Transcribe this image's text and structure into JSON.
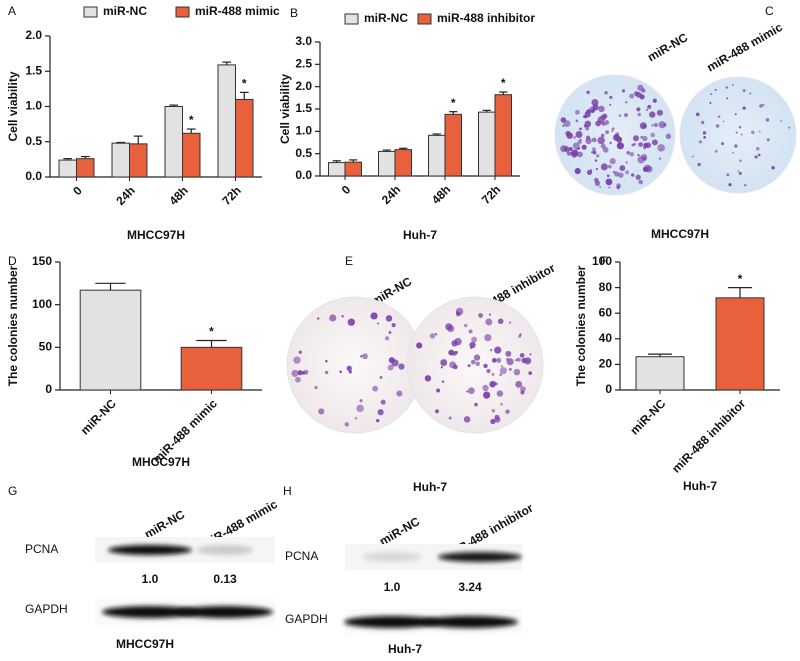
{
  "chart_data": [
    {
      "type": "bar",
      "panel_label": "A",
      "ylabel": "Cell viability",
      "xlabel": "MHCC97H",
      "categories": [
        "0",
        "24h",
        "48h",
        "72h"
      ],
      "series": [
        {
          "name": "miR-NC",
          "color": "#e2e2e2",
          "values": [
            0.24,
            0.48,
            1.0,
            1.59
          ],
          "errors": [
            0.02,
            0.01,
            0.02,
            0.04
          ],
          "significance": [
            null,
            null,
            null,
            null
          ]
        },
        {
          "name": "miR-488 mimic",
          "color": "#e8603c",
          "values": [
            0.26,
            0.47,
            0.62,
            1.1
          ],
          "errors": [
            0.03,
            0.11,
            0.06,
            0.1
          ],
          "significance": [
            null,
            null,
            "*",
            "*"
          ]
        }
      ],
      "ylim": [
        0,
        2.0
      ],
      "yticks": [
        {
          "value": 0,
          "label": "0.0"
        },
        {
          "value": 0.5,
          "label": "0.5"
        },
        {
          "value": 1.0,
          "label": "1.0"
        },
        {
          "value": 1.5,
          "label": "1.5"
        },
        {
          "value": 2.0,
          "label": "2.0"
        }
      ]
    },
    {
      "type": "bar",
      "panel_label": "B",
      "ylabel": "Cell viability",
      "xlabel": "Huh-7",
      "categories": [
        "0",
        "24h",
        "48h",
        "72h"
      ],
      "series": [
        {
          "name": "miR-NC",
          "color": "#e2e2e2",
          "values": [
            0.3,
            0.55,
            0.91,
            1.43
          ],
          "errors": [
            0.04,
            0.03,
            0.03,
            0.04
          ],
          "significance": [
            null,
            null,
            null,
            null
          ]
        },
        {
          "name": "miR-488 inhibitor",
          "color": "#e8603c",
          "values": [
            0.31,
            0.59,
            1.38,
            1.82
          ],
          "errors": [
            0.05,
            0.03,
            0.06,
            0.06
          ],
          "significance": [
            null,
            null,
            "*",
            "*"
          ]
        }
      ],
      "ylim": [
        0,
        3.0
      ],
      "yticks": [
        {
          "value": 0,
          "label": "0.0"
        },
        {
          "value": 0.5,
          "label": "0.5"
        },
        {
          "value": 1.0,
          "label": "1.0"
        },
        {
          "value": 1.5,
          "label": "1.5"
        },
        {
          "value": 2.0,
          "label": "2.0"
        },
        {
          "value": 2.5,
          "label": "2.5"
        },
        {
          "value": 3.0,
          "label": "3.0"
        }
      ]
    },
    {
      "type": "bar",
      "panel_label": "D",
      "ylabel": "The colonies number",
      "xlabel": "MHCC97H",
      "categories": [
        "miR-NC",
        "miR-488 mimic"
      ],
      "values": [
        117,
        50
      ],
      "errors": [
        8,
        8
      ],
      "colors": [
        "#e2e2e2",
        "#e8603c"
      ],
      "significance": [
        null,
        "*"
      ],
      "ylim": [
        0,
        150
      ],
      "yticks": [
        0,
        50,
        100,
        150
      ]
    },
    {
      "type": "bar",
      "panel_label": "F",
      "ylabel": "The colonies number",
      "xlabel": "Huh-7",
      "categories": [
        "miR-NC",
        "miR-488 inhibitor"
      ],
      "values": [
        26,
        72
      ],
      "errors": [
        2,
        8
      ],
      "colors": [
        "#e2e2e2",
        "#e8603c"
      ],
      "significance": [
        null,
        "*"
      ],
      "ylim": [
        0,
        100
      ],
      "yticks": [
        0,
        20,
        40,
        60,
        80,
        100
      ]
    }
  ],
  "colony_images": [
    {
      "panel_label": "C",
      "columns": [
        "miR-NC",
        "miR-488 mimic"
      ],
      "caption": "MHCC97H"
    },
    {
      "panel_label": "E",
      "columns": [
        "miR-NC",
        "miR-488 inhibitor"
      ],
      "caption": "Huh-7"
    }
  ],
  "western_blots": [
    {
      "panel_label": "G",
      "columns": [
        "miR-NC",
        "miR-488 mimic"
      ],
      "rows": [
        "PCNA",
        "GAPDH"
      ],
      "ratios": [
        "1.0",
        "0.13"
      ],
      "caption": "MHCC97H"
    },
    {
      "panel_label": "H",
      "columns": [
        "miR-NC",
        "miR-488 inhibitor"
      ],
      "rows": [
        "PCNA",
        "GAPDH"
      ],
      "ratios": [
        "1.0",
        "3.24"
      ],
      "caption": "Huh-7"
    }
  ]
}
